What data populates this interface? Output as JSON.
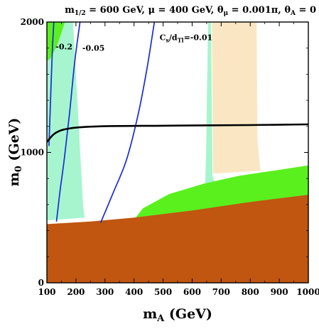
{
  "chart_data": {
    "type": "area",
    "title": {
      "m": "m",
      "msub": "1/2",
      "rest1": " = 600 GeV, μ = 400 GeV, θ",
      "thsub1": "μ",
      "rest2": " = 0.001π, θ",
      "thsub2": "A",
      "rest3": " = 0"
    },
    "xlabel": {
      "main": "m",
      "sub": "A",
      "unit": " (GeV)"
    },
    "ylabel": {
      "main": "m",
      "sub": "0",
      "unit": " (GeV)"
    },
    "xlim": [
      100,
      1000
    ],
    "ylim": [
      0,
      2000
    ],
    "x_ticks": [
      100,
      200,
      300,
      400,
      500,
      600,
      700,
      800,
      900,
      1000
    ],
    "x_tick_labels": [
      "100",
      "200",
      "300",
      "400",
      "500",
      "600",
      "700",
      "800",
      "900",
      "1000"
    ],
    "y_ticks": [
      0,
      1000,
      2000
    ],
    "y_tick_labels": [
      "0",
      "1000",
      "2000"
    ],
    "colors": {
      "brown": "#c0560f",
      "green": "#5af01e",
      "light_green": "#a6f5cf",
      "peach": "#fbe6c4",
      "blue": "#1a2bd6",
      "black": "#000000"
    },
    "regions": [
      {
        "name": "light-green-left",
        "polygon": [
          [
            100,
            2000
          ],
          [
            190,
            2000
          ],
          [
            225,
            580
          ],
          [
            230,
            500
          ],
          [
            110,
            480
          ],
          [
            100,
            480
          ]
        ]
      },
      {
        "name": "light-green-right",
        "polygon": [
          [
            655,
            2000
          ],
          [
            665,
            2000
          ],
          [
            670,
            820
          ],
          [
            680,
            760
          ],
          [
            660,
            750
          ],
          [
            645,
            760
          ],
          [
            648,
            1000
          ]
        ]
      },
      {
        "name": "peach-band",
        "polygon": [
          [
            668,
            2000
          ],
          [
            822,
            2000
          ],
          [
            825,
            1100
          ],
          [
            835,
            860
          ],
          [
            690,
            840
          ],
          [
            672,
            840
          ]
        ]
      },
      {
        "name": "green-band",
        "polygon": [
          [
            392,
            460
          ],
          [
            430,
            570
          ],
          [
            520,
            680
          ],
          [
            640,
            760
          ],
          [
            760,
            820
          ],
          [
            880,
            860
          ],
          [
            1000,
            900
          ],
          [
            1000,
            660
          ],
          [
            860,
            620
          ],
          [
            720,
            580
          ],
          [
            560,
            535
          ],
          [
            392,
            455
          ]
        ]
      },
      {
        "name": "green-corner",
        "polygon": [
          [
            100,
            2000
          ],
          [
            162,
            2000
          ],
          [
            135,
            1820
          ],
          [
            112,
            1720
          ],
          [
            100,
            1700
          ]
        ]
      },
      {
        "name": "brown-region",
        "polygon": [
          [
            100,
            0
          ],
          [
            1000,
            0
          ],
          [
            1000,
            675
          ],
          [
            800,
            620
          ],
          [
            600,
            555
          ],
          [
            400,
            500
          ],
          [
            250,
            470
          ],
          [
            100,
            450
          ]
        ]
      }
    ],
    "lines": [
      {
        "name": "Cs/dTl=-0.2",
        "color": "blue",
        "points": [
          [
            107,
            1050
          ],
          [
            111,
            1300
          ],
          [
            115,
            1550
          ],
          [
            119,
            1800
          ],
          [
            124,
            2000
          ]
        ]
      },
      {
        "name": "Cs/dTl=-0.05",
        "color": "blue",
        "points": [
          [
            133,
            470
          ],
          [
            145,
            700
          ],
          [
            160,
            950
          ],
          [
            178,
            1300
          ],
          [
            196,
            1700
          ],
          [
            214,
            2000
          ]
        ]
      },
      {
        "name": "Cs/dTl=-0.01",
        "color": "blue",
        "points": [
          [
            285,
            460
          ],
          [
            330,
            700
          ],
          [
            375,
            950
          ],
          [
            415,
            1300
          ],
          [
            445,
            1650
          ],
          [
            470,
            2000
          ]
        ]
      },
      {
        "name": "black-contour",
        "color": "black",
        "points": [
          [
            100,
            1080
          ],
          [
            130,
            1150
          ],
          [
            180,
            1185
          ],
          [
            280,
            1200
          ],
          [
            500,
            1205
          ],
          [
            800,
            1210
          ],
          [
            1000,
            1215
          ]
        ]
      }
    ],
    "annotations": [
      {
        "text": "-0.2",
        "x": 130,
        "y": 1790,
        "sup": "",
        "sub": ""
      },
      {
        "text": "-0.05",
        "x": 222,
        "y": 1780,
        "sup": "",
        "sub": ""
      },
      {
        "text": "C",
        "x": 488,
        "y": 1860,
        "sub": "s",
        "mid": "/d",
        "sub2": "Tl",
        "tail": "=-0.01"
      }
    ]
  }
}
